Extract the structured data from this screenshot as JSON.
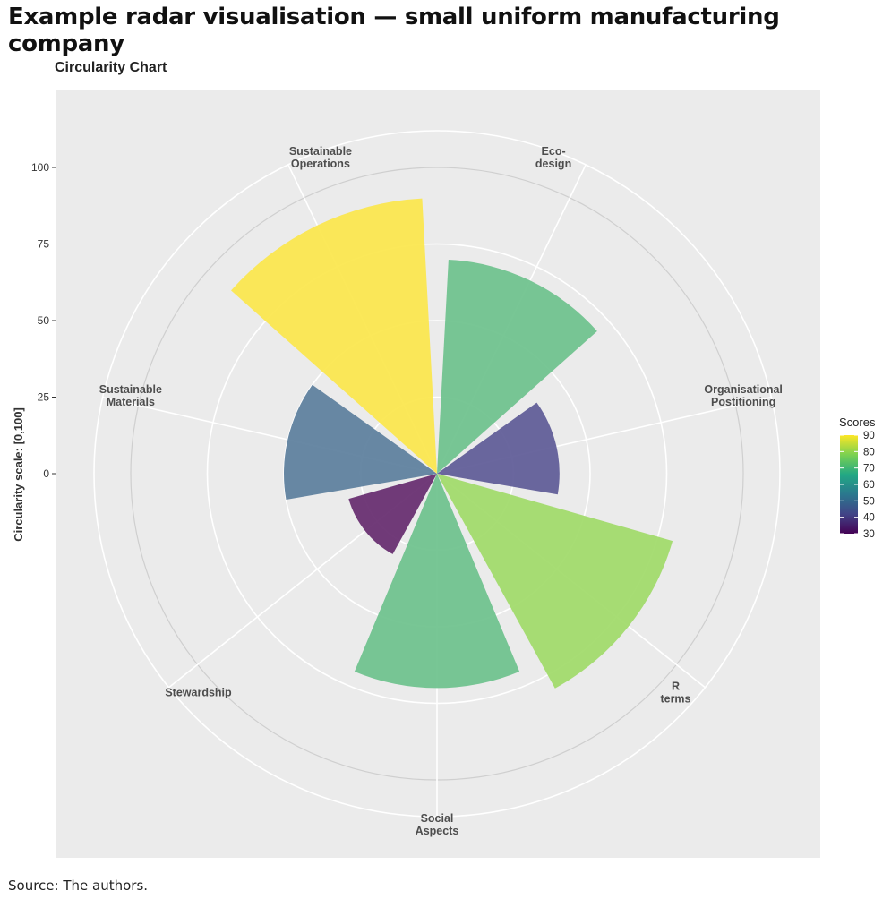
{
  "page": {
    "title": "Example radar visualisation — small uniform manufacturing company",
    "source": "Source: The authors."
  },
  "chart_data": {
    "type": "bar",
    "coord": "polar",
    "title": "Circularity Chart",
    "xlabel": "",
    "ylabel": "Circularity scale:  [0,100]",
    "ylim": [
      0,
      100
    ],
    "yticks": [
      0,
      25,
      50,
      75,
      100
    ],
    "grid": true,
    "categories": [
      [
        "Eco-",
        "design"
      ],
      [
        "Organisational",
        "Postitioning"
      ],
      [
        "R",
        "terms"
      ],
      [
        "Social",
        "Aspects"
      ],
      [
        "Stewardship"
      ],
      [
        "Sustainable",
        "Materials"
      ],
      [
        "Sustainable",
        "Operations"
      ]
    ],
    "values": [
      70,
      40,
      80,
      70,
      30,
      50,
      90
    ],
    "colors": [
      "#6cc18c",
      "#5d5a96",
      "#a0da68",
      "#6cc18c",
      "#652a6e",
      "#5b7e9c",
      "#fbe64b"
    ],
    "legend": {
      "title": "Scores",
      "position": "right",
      "range": [
        30,
        90
      ],
      "ticks": [
        90,
        80,
        70,
        60,
        50,
        40,
        30
      ],
      "gradient": [
        "#440154",
        "#414487",
        "#2a788e",
        "#22a884",
        "#7ad151",
        "#fde725"
      ]
    }
  }
}
